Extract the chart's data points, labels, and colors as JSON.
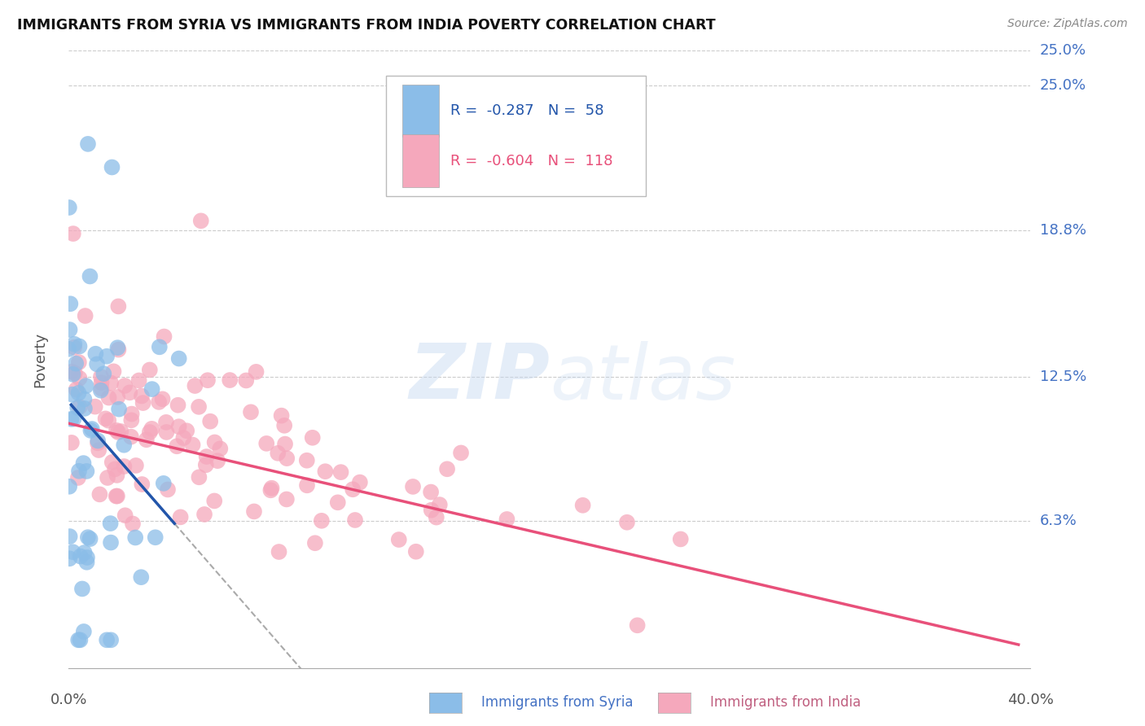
{
  "title": "IMMIGRANTS FROM SYRIA VS IMMIGRANTS FROM INDIA POVERTY CORRELATION CHART",
  "source": "Source: ZipAtlas.com",
  "ylabel": "Poverty",
  "syria_color": "#8bbde8",
  "india_color": "#f5a8bc",
  "syria_line_color": "#2255aa",
  "india_line_color": "#e8507a",
  "syria_R": -0.287,
  "syria_N": 58,
  "india_R": -0.604,
  "india_N": 118,
  "watermark": "ZIPatlas",
  "xlim": [
    0.0,
    0.4
  ],
  "ylim": [
    0.0,
    0.265
  ],
  "ytick_values": [
    0.063,
    0.125,
    0.188,
    0.25
  ],
  "ytick_labels": [
    "6.3%",
    "12.5%",
    "18.8%",
    "25.0%"
  ],
  "xtick_left_label": "0.0%",
  "xtick_right_label": "40.0%",
  "legend_entries": [
    {
      "R": "-0.287",
      "N": "58",
      "color": "#2255aa",
      "face": "#8bbde8"
    },
    {
      "R": "-0.604",
      "N": "118",
      "color": "#e8507a",
      "face": "#f5a8bc"
    }
  ],
  "bottom_legend": [
    {
      "label": "Immigrants from Syria",
      "color": "#8bbde8",
      "text_color": "#4472c4"
    },
    {
      "label": "Immigrants from India",
      "color": "#f5a8bc",
      "text_color": "#e8507a"
    }
  ]
}
